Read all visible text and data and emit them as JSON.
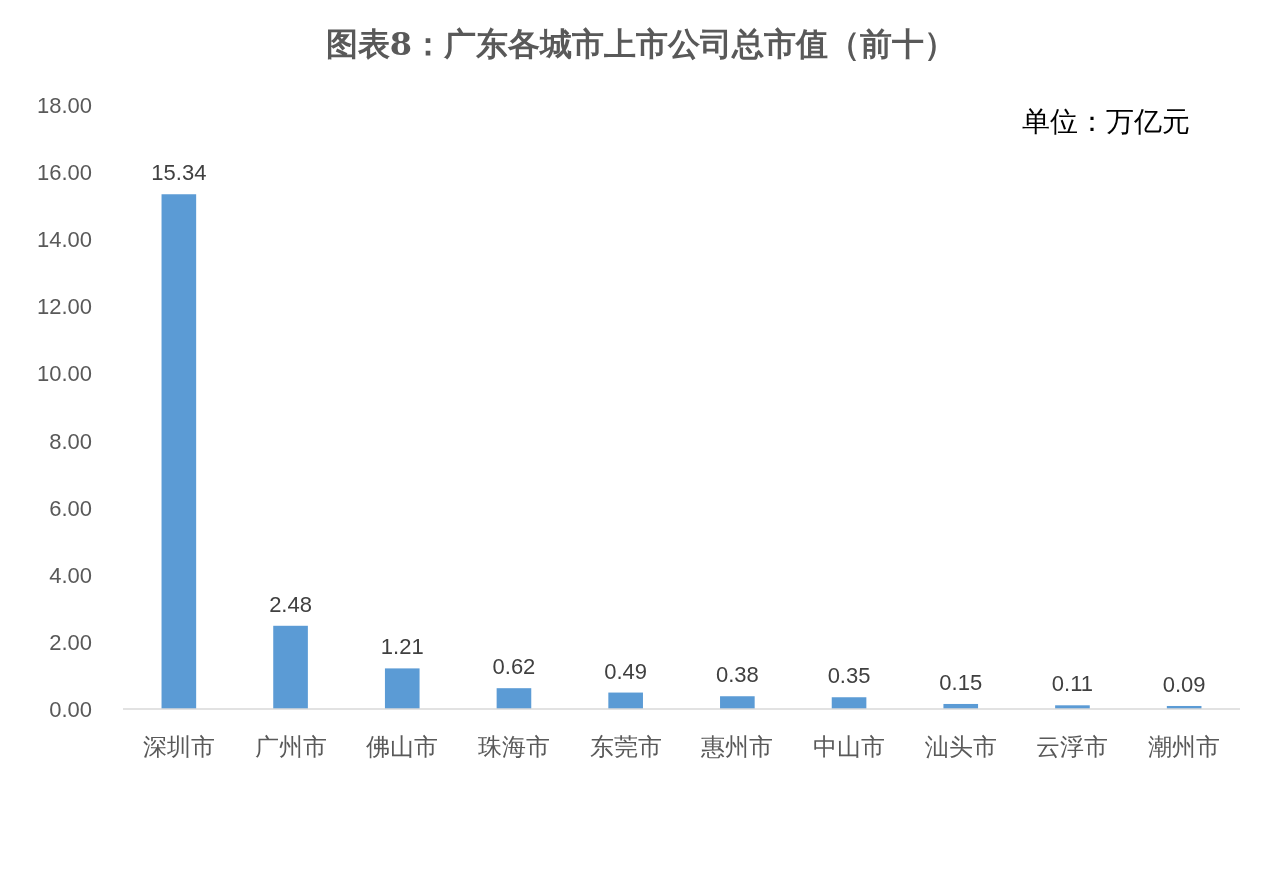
{
  "chart_data": {
    "type": "bar",
    "title": "图表8：广东各城市上市公司总市值（前十）",
    "annotations": [
      "单位：万亿元"
    ],
    "categories": [
      "深圳市",
      "广州市",
      "佛山市",
      "珠海市",
      "东莞市",
      "惠州市",
      "中山市",
      "汕头市",
      "云浮市",
      "潮州市"
    ],
    "values": [
      15.34,
      2.48,
      1.21,
      0.62,
      0.49,
      0.38,
      0.35,
      0.15,
      0.11,
      0.09
    ],
    "color": "#5b9bd5",
    "ylim": [
      0,
      18
    ],
    "yticks": [
      {
        "value": 0,
        "label": "0.00"
      },
      {
        "value": 2,
        "label": "2.00"
      },
      {
        "value": 4,
        "label": "4.00"
      },
      {
        "value": 6,
        "label": "6.00"
      },
      {
        "value": 8,
        "label": "8.00"
      },
      {
        "value": 10,
        "label": "10.00"
      },
      {
        "value": 12,
        "label": "12.00"
      },
      {
        "value": 14,
        "label": "14.00"
      },
      {
        "value": 16,
        "label": "16.00"
      },
      {
        "value": 18,
        "label": "18.00"
      }
    ],
    "data_labels": true,
    "grid": false
  }
}
